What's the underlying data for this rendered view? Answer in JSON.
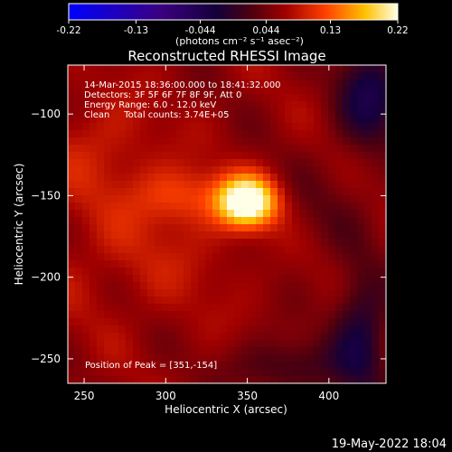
{
  "chart_data": {
    "type": "heatmap",
    "title": "Reconstructed RHESSI Image",
    "xlabel": "Heliocentric X (arcsec)",
    "ylabel": "Heliocentric Y (arcsec)",
    "xlim": [
      240,
      435
    ],
    "ylim": [
      -265,
      -70
    ],
    "x_ticks": [
      250,
      300,
      350,
      400
    ],
    "y_ticks": [
      -100,
      -150,
      -200,
      -250
    ],
    "colorbar": {
      "min": -0.22,
      "max": 0.22,
      "ticks": [
        "-0.22",
        "-0.13",
        "-0.044",
        "0.044",
        "0.13",
        "0.22"
      ],
      "unit_label": "(photons cm⁻² s⁻¹ asec⁻²)"
    },
    "annotations": [
      "14-Mar-2015 18:36:00.000 to 18:41:32.000",
      "Detectors: 3F 5F 6F 7F 8F 9F, Att 0",
      "Energy Range: 6.0 - 12.0 keV",
      "Clean     Total counts: 3.74E+05"
    ],
    "peak_label": "Position of Peak = [351,-154]",
    "peak": {
      "x": 351,
      "y": -154,
      "value": 0.22
    },
    "background_level": 0.06,
    "features": [
      {
        "x": 350,
        "y": -154,
        "sigma_x": 13,
        "sigma_y": 11,
        "amp": 0.19
      },
      {
        "x": 310,
        "y": -150,
        "sigma_x": 20,
        "sigma_y": 12,
        "amp": 0.05
      },
      {
        "x": 285,
        "y": -185,
        "sigma_x": 45,
        "sigma_y": 30,
        "amp": 0.025
      },
      {
        "x": 260,
        "y": -120,
        "sigma_x": 25,
        "sigma_y": 25,
        "amp": 0.03
      },
      {
        "x": 425,
        "y": -90,
        "sigma_x": 14,
        "sigma_y": 22,
        "amp": -0.09
      },
      {
        "x": 420,
        "y": -235,
        "sigma_x": 12,
        "sigma_y": 28,
        "amp": -0.08
      },
      {
        "x": 375,
        "y": -255,
        "sigma_x": 25,
        "sigma_y": 12,
        "amp": -0.05
      },
      {
        "x": 395,
        "y": -160,
        "sigma_x": 20,
        "sigma_y": 20,
        "amp": -0.02
      }
    ]
  },
  "footer": {
    "date": "19-May-2022 18:04"
  }
}
